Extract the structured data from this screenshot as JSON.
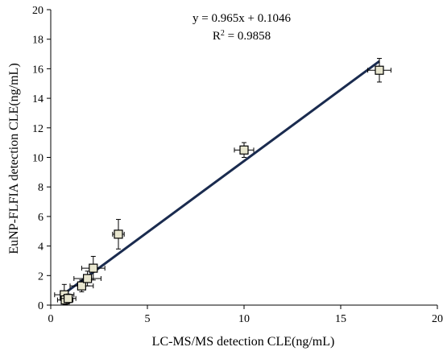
{
  "chart_data": {
    "type": "scatter",
    "xlabel": "LC-MS/MS detection CLE(ng/mL)",
    "ylabel": "EuNP-FLFIA detection CLE(ng/mL)",
    "xlim": [
      0,
      20
    ],
    "ylim": [
      0,
      20
    ],
    "xticks": [
      0,
      5,
      10,
      15,
      20
    ],
    "yticks": [
      0,
      2,
      4,
      6,
      8,
      10,
      12,
      14,
      16,
      18,
      20
    ],
    "grid": false,
    "annotations": {
      "equation": "y = 0.965x + 0.1046",
      "r2_label": "R",
      "r2_sup": "2",
      "r2_value": " = 0.9858"
    },
    "fit": {
      "slope": 0.965,
      "intercept": 0.1046,
      "x_range": [
        0.5,
        17
      ]
    },
    "points": [
      {
        "x": 0.7,
        "y": 0.7,
        "xerr": 0.5,
        "yerr": 0.7
      },
      {
        "x": 0.75,
        "y": 0.35,
        "xerr": 0.4,
        "yerr": 0.3
      },
      {
        "x": 0.9,
        "y": 0.45,
        "xerr": 0.4,
        "yerr": 0.3
      },
      {
        "x": 1.6,
        "y": 1.3,
        "xerr": 0.6,
        "yerr": 0.4
      },
      {
        "x": 1.9,
        "y": 1.8,
        "xerr": 0.7,
        "yerr": 0.5
      },
      {
        "x": 2.2,
        "y": 2.5,
        "xerr": 0.6,
        "yerr": 0.8
      },
      {
        "x": 3.5,
        "y": 4.8,
        "xerr": 0.3,
        "yerr": 1.0
      },
      {
        "x": 10.0,
        "y": 10.5,
        "xerr": 0.5,
        "yerr": 0.5
      },
      {
        "x": 17.0,
        "y": 15.9,
        "xerr": 0.6,
        "yerr": 0.8
      }
    ]
  }
}
